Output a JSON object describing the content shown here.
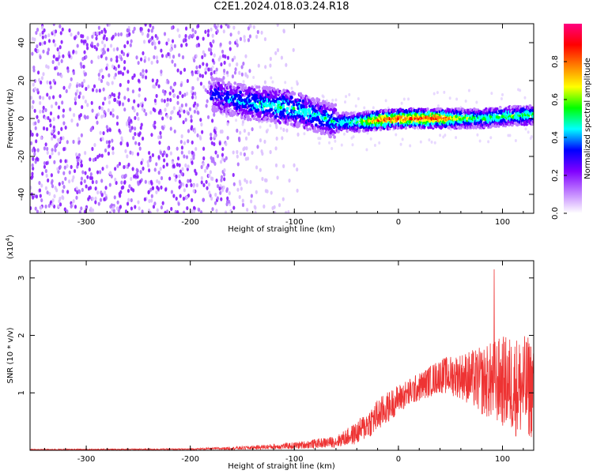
{
  "title": "C2E1.2024.018.03.24.R18",
  "chart_data": [
    {
      "type": "heatmap",
      "name": "spectrogram",
      "xlabel": "Height of straight line (km)",
      "ylabel": "Frequency (Hz)",
      "xlim": [
        -354,
        130
      ],
      "ylim": [
        -50,
        50
      ],
      "xticks": [
        -300,
        -200,
        -100,
        0,
        100
      ],
      "yticks": [
        -40,
        -20,
        0,
        20,
        40
      ],
      "colorbar": {
        "label": "Normalized spectral amplitude",
        "range": [
          0,
          1
        ],
        "ticks": [
          "0.0",
          "0.2",
          "0.4",
          "0.6",
          "0.8"
        ],
        "colors": [
          "#ffffff",
          "#c080ff",
          "#8000ff",
          "#0000ff",
          "#00ffff",
          "#00ff00",
          "#ffff00",
          "#ff8000",
          "#ff0000",
          "#ff0080"
        ]
      },
      "ridge": {
        "x": [
          -180,
          -160,
          -140,
          -120,
          -100,
          -80,
          -60,
          -40,
          -20,
          0,
          20,
          40,
          60,
          80,
          100,
          130
        ],
        "freq": [
          13,
          10,
          8,
          7,
          5,
          2,
          -2,
          -2,
          -1,
          0,
          0,
          0,
          0,
          0,
          1,
          2
        ],
        "amplitude": [
          0.35,
          0.4,
          0.45,
          0.5,
          0.5,
          0.45,
          0.45,
          0.55,
          0.8,
          0.85,
          0.85,
          0.85,
          0.6,
          0.55,
          0.55,
          0.55
        ]
      },
      "noise_region": {
        "x_from": -354,
        "x_to": -180,
        "amplitude": 0.2
      }
    },
    {
      "type": "line",
      "name": "snr",
      "xlabel": "Height of straight line (km)",
      "ylabel": "SNR (10 * v/v)",
      "y_multiplier": "(x10",
      "y_multiplier_exp": "4",
      "y_multiplier_close": ")",
      "xlim": [
        -354,
        130
      ],
      "ylim": [
        0,
        3.3
      ],
      "xticks": [
        -300,
        -200,
        -100,
        0,
        100
      ],
      "yticks": [
        1,
        2,
        3
      ],
      "color": "#ee3333",
      "envelope": {
        "x": [
          -354,
          -200,
          -150,
          -100,
          -60,
          -40,
          -20,
          0,
          20,
          40,
          60,
          80,
          100,
          115,
          130
        ],
        "mean": [
          0.01,
          0.02,
          0.04,
          0.08,
          0.15,
          0.3,
          0.6,
          0.9,
          1.1,
          1.3,
          1.3,
          1.2,
          1.2,
          1.1,
          1.1
        ],
        "spread": [
          0.01,
          0.01,
          0.03,
          0.06,
          0.1,
          0.2,
          0.3,
          0.25,
          0.25,
          0.3,
          0.4,
          0.6,
          0.8,
          0.9,
          0.9
        ]
      },
      "peak": {
        "x": 92,
        "y": 3.15
      }
    }
  ]
}
